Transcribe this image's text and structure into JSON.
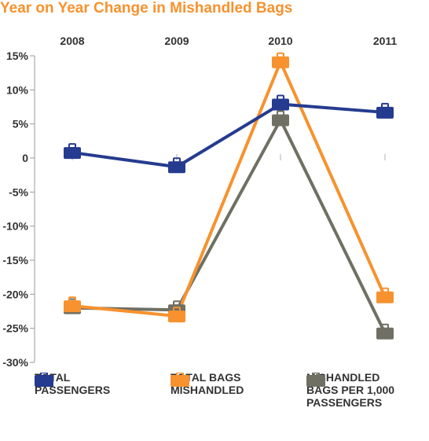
{
  "title": "Year on Year Change in Mishandled Bags",
  "chart_data": {
    "type": "line",
    "categories": [
      "2008",
      "2009",
      "2010",
      "2011"
    ],
    "ylim": [
      -30,
      15
    ],
    "yticks": [
      "15%",
      "10%",
      "5%",
      "0",
      "-5%",
      "-10%",
      "-15%",
      "-20%",
      "-25%",
      "-30%"
    ],
    "grid": false,
    "legend_position": "bottom",
    "series": [
      {
        "name": "TOTAL PASSENGERS",
        "color": "#253b8f",
        "values": [
          0.8,
          -1.3,
          7.9,
          6.7
        ]
      },
      {
        "name": "TOTAL BAGS MISHANDLED",
        "color": "#f7922e",
        "values": [
          -21.7,
          -23.2,
          14.1,
          -20.4
        ]
      },
      {
        "name": "MISHANDLED BAGS PER 1,000 PASSENGERS",
        "color": "#6f6f63",
        "values": [
          -22.0,
          -22.3,
          5.6,
          -25.7
        ]
      }
    ]
  }
}
